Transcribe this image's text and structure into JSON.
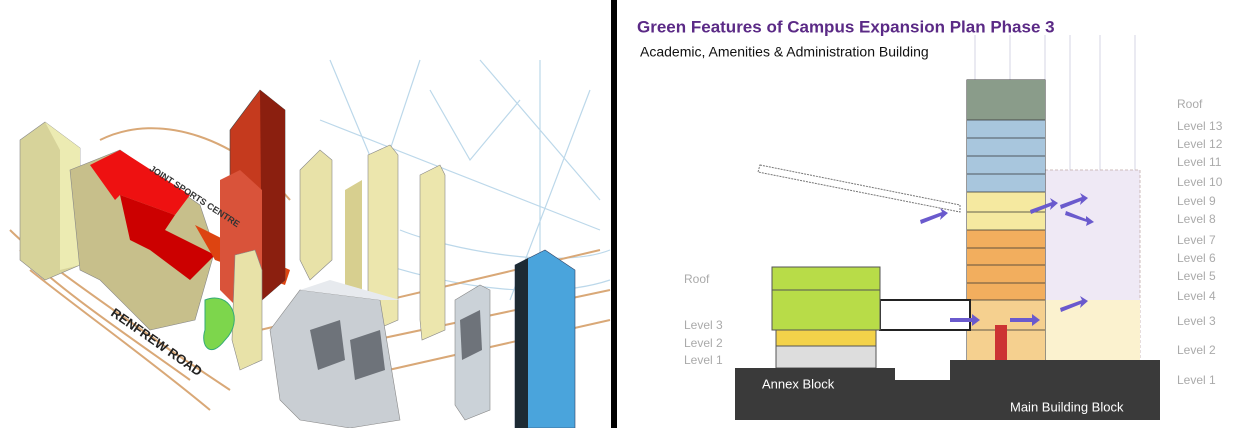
{
  "left_panel": {
    "labels": [
      "JOINT SPORTS CENTRE",
      "RENFREW ROAD"
    ]
  },
  "right_panel": {
    "title": "Green Features of Campus Expansion Plan Phase 3",
    "subtitle": "Academic, Amenities & Administration Building",
    "main_levels": [
      "Roof",
      "Level 13",
      "Level 12",
      "Level 11",
      "Level 10",
      "Level 9",
      "Level 8",
      "Level 7",
      "Level 6",
      "Level 5",
      "Level 4",
      "Level 3",
      "Level 2",
      "Level 1"
    ],
    "annex_levels": [
      "Roof",
      "Level 3",
      "Level 2",
      "Level 1"
    ],
    "blocks": [
      "Annex Block",
      "Main Building Block"
    ]
  }
}
